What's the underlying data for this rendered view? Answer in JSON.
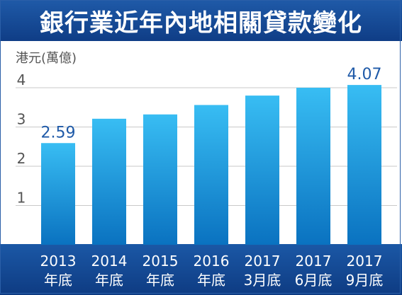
{
  "title": "銀行業近年內地相關貸款變化",
  "chart_data": {
    "type": "bar",
    "title": "銀行業近年內地相關貸款變化",
    "ylabel": "港元(萬億)",
    "ylim": [
      0,
      4.3
    ],
    "yticks": [
      "1",
      "2",
      "3",
      "4"
    ],
    "categories": [
      [
        "2013",
        "年底"
      ],
      [
        "2014",
        "年底"
      ],
      [
        "2015",
        "年底"
      ],
      [
        "2016",
        "年底"
      ],
      [
        "2017",
        "3月底"
      ],
      [
        "2017",
        "6月底"
      ],
      [
        "2017",
        "9月底"
      ]
    ],
    "values": [
      2.59,
      3.21,
      3.32,
      3.56,
      3.8,
      4.0,
      4.07
    ],
    "data_labels": [
      "2.59",
      "",
      "",
      "",
      "",
      "",
      "4.07"
    ],
    "grid": true
  },
  "colors": {
    "header": "#1a53a0",
    "bar_light": "#35b6ee",
    "bar_dark": "#0a78c6",
    "label": "#1f5aa8"
  }
}
